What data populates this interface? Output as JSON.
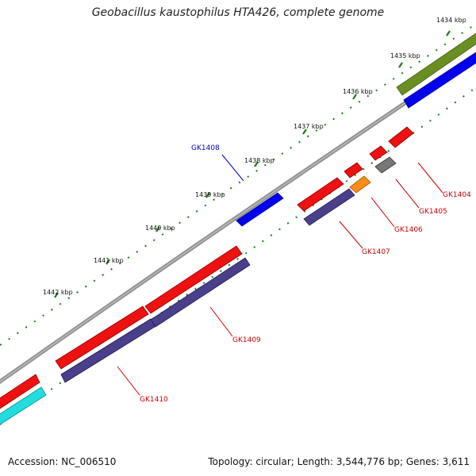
{
  "title": "Geobacillus kaustophilus HTA426, complete genome",
  "footer": {
    "accession": "Accession: NC_006510",
    "summary": "Topology: circular; Length: 3,544,776 bp; Genes: 3,611"
  },
  "scale": {
    "unit": "kbp",
    "ticks": [
      {
        "kbp": 1434,
        "label": "1434 kbp"
      },
      {
        "kbp": 1435,
        "label": "1435 kbp"
      },
      {
        "kbp": 1436,
        "label": "1436 kbp"
      },
      {
        "kbp": 1437,
        "label": "1437 kbp"
      },
      {
        "kbp": 1438,
        "label": "1438 kbp"
      },
      {
        "kbp": 1439,
        "label": "1439 kbp"
      },
      {
        "kbp": 1440,
        "label": "1440 kbp"
      },
      {
        "kbp": 1441,
        "label": "1441 kbp"
      },
      {
        "kbp": 1442,
        "label": "1442 kbp"
      }
    ]
  },
  "colors": {
    "backbone": "#8a8a8a",
    "tick": "#1a7a1a",
    "label_red": "#cc0000",
    "label_blue": "#0000cc"
  },
  "genes": [
    {
      "name": "GK1404",
      "color": "#ee1111",
      "labeled": true
    },
    {
      "name": "GK1405",
      "color": "#777777",
      "labeled": true
    },
    {
      "name": "GK1406",
      "color": "#ff8c1a",
      "labeled": true
    },
    {
      "name": "GK1407",
      "color": "#4a3f8a",
      "labeled": true
    },
    {
      "name": "GK1408",
      "color": "#0000ee",
      "labeled": true
    },
    {
      "name": "GK1409",
      "color": "#4a3f8a",
      "labeled": true
    },
    {
      "name": "GK1410",
      "color": "#4a3f8a",
      "labeled": true
    }
  ],
  "other_features": [
    {
      "color": "#6b8e23"
    },
    {
      "color": "#0000ee"
    },
    {
      "color": "#ee1111"
    },
    {
      "color": "#22dddd"
    }
  ]
}
